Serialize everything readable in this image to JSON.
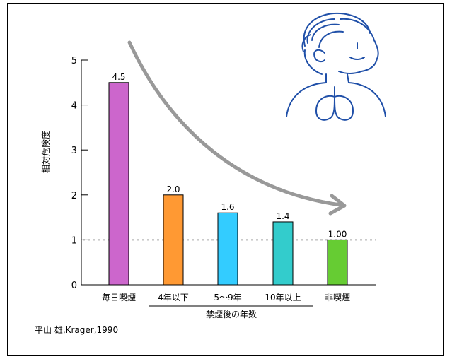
{
  "chart_data": {
    "type": "bar",
    "title": "",
    "ylabel": "相対危険度",
    "xlabel": "禁煙後の年数",
    "categories": [
      "毎日喫煙",
      "4年以下",
      "5〜9年",
      "10年以上",
      "非喫煙"
    ],
    "values": [
      4.5,
      2.0,
      1.6,
      1.4,
      1.0
    ],
    "value_labels": [
      "4.5",
      "2.0",
      "1.6",
      "1.4",
      "1.00"
    ],
    "colors": [
      "#cc66cc",
      "#ff9933",
      "#33ccff",
      "#33cccc",
      "#66cc33"
    ],
    "ylim": [
      0,
      5
    ],
    "yticks": [
      0,
      1,
      2,
      3,
      4,
      5
    ],
    "reference_line": 1,
    "grid": false,
    "group_bracket_categories": [
      "4年以下",
      "5〜9年",
      "10年以上"
    ]
  },
  "source": "平山 雄,Krager,1990",
  "colors": {
    "illustration": "#1f4fa8",
    "arrow": "#999999",
    "reference_line": "#aaaaaa"
  }
}
